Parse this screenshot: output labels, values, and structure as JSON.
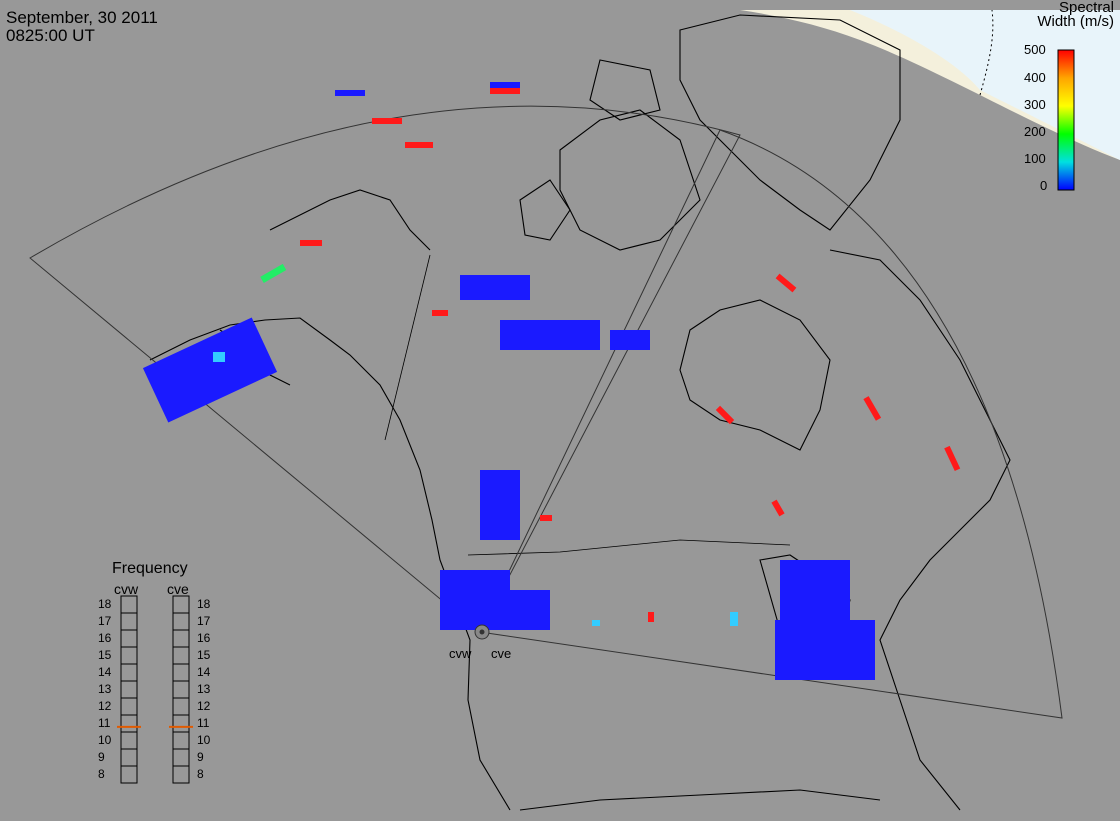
{
  "header": {
    "date": "September, 30 2011",
    "time": "0825:00 UT"
  },
  "colorbar": {
    "title_line1": "Spectral",
    "title_line2": "Width (m/s)",
    "ticks": [
      "500",
      "400",
      "300",
      "200",
      "100",
      "0"
    ],
    "colors": [
      "#ff0000",
      "#ffa500",
      "#ffff00",
      "#00ff00",
      "#00e0e0",
      "#0000ff"
    ]
  },
  "radars": {
    "west": "cvw",
    "east": "cve"
  },
  "frequency_panel": {
    "title": "Frequency",
    "col_west": "cvw",
    "col_east": "cve",
    "levels": [
      "18",
      "17",
      "16",
      "15",
      "14",
      "13",
      "12",
      "11",
      "10",
      "9",
      "8"
    ],
    "current_west": 10.8,
    "current_east": 10.8,
    "marker_color": "#e05a00"
  },
  "colors": {
    "background": "#989898",
    "coastline": "#000000",
    "sunlit": "#f4f0dc",
    "daylight_sky": "#e8f4fa",
    "scatter_low": "#1a1aff",
    "scatter_high": "#ff1a1a"
  }
}
